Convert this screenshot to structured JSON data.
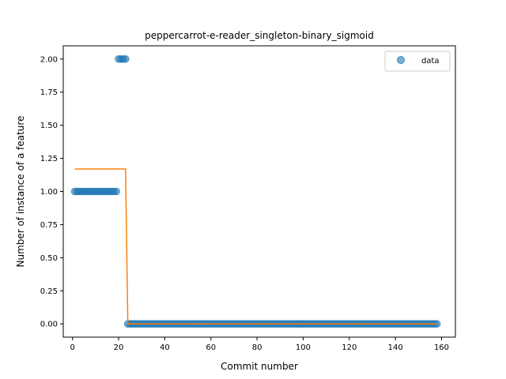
{
  "chart_data": {
    "type": "scatter",
    "title": "peppercarrot-e-reader_singleton-binary_sigmoid",
    "xlabel": "Commit number",
    "ylabel": "Number of instance of a feature",
    "xlim": [
      -4,
      166
    ],
    "ylim": [
      -0.1,
      2.1
    ],
    "xticks": [
      0,
      20,
      40,
      60,
      80,
      100,
      120,
      140,
      160
    ],
    "xtick_labels": [
      "0",
      "20",
      "40",
      "60",
      "80",
      "100",
      "120",
      "140",
      "160"
    ],
    "yticks": [
      0,
      0.25,
      0.5,
      0.75,
      1.0,
      1.25,
      1.5,
      1.75,
      2.0
    ],
    "ytick_labels": [
      "0.00",
      "0.25",
      "0.50",
      "0.75",
      "1.00",
      "1.25",
      "1.50",
      "1.75",
      "2.00"
    ],
    "grid": false,
    "legend_position": "upper right",
    "colors": {
      "data": "#1f77b4",
      "fit": "#ff7f0e"
    },
    "series": [
      {
        "name": "data",
        "kind": "scatter",
        "segments": [
          {
            "x_from": 1,
            "x_to": 19,
            "y": 1
          },
          {
            "x_from": 20,
            "x_to": 23,
            "y": 2
          },
          {
            "x_from": 24,
            "x_to": 158,
            "y": 0
          }
        ]
      },
      {
        "kind": "line",
        "x": [
          1,
          23,
          24,
          158
        ],
        "y": [
          1.17,
          1.17,
          0.0,
          0.0
        ]
      }
    ]
  }
}
